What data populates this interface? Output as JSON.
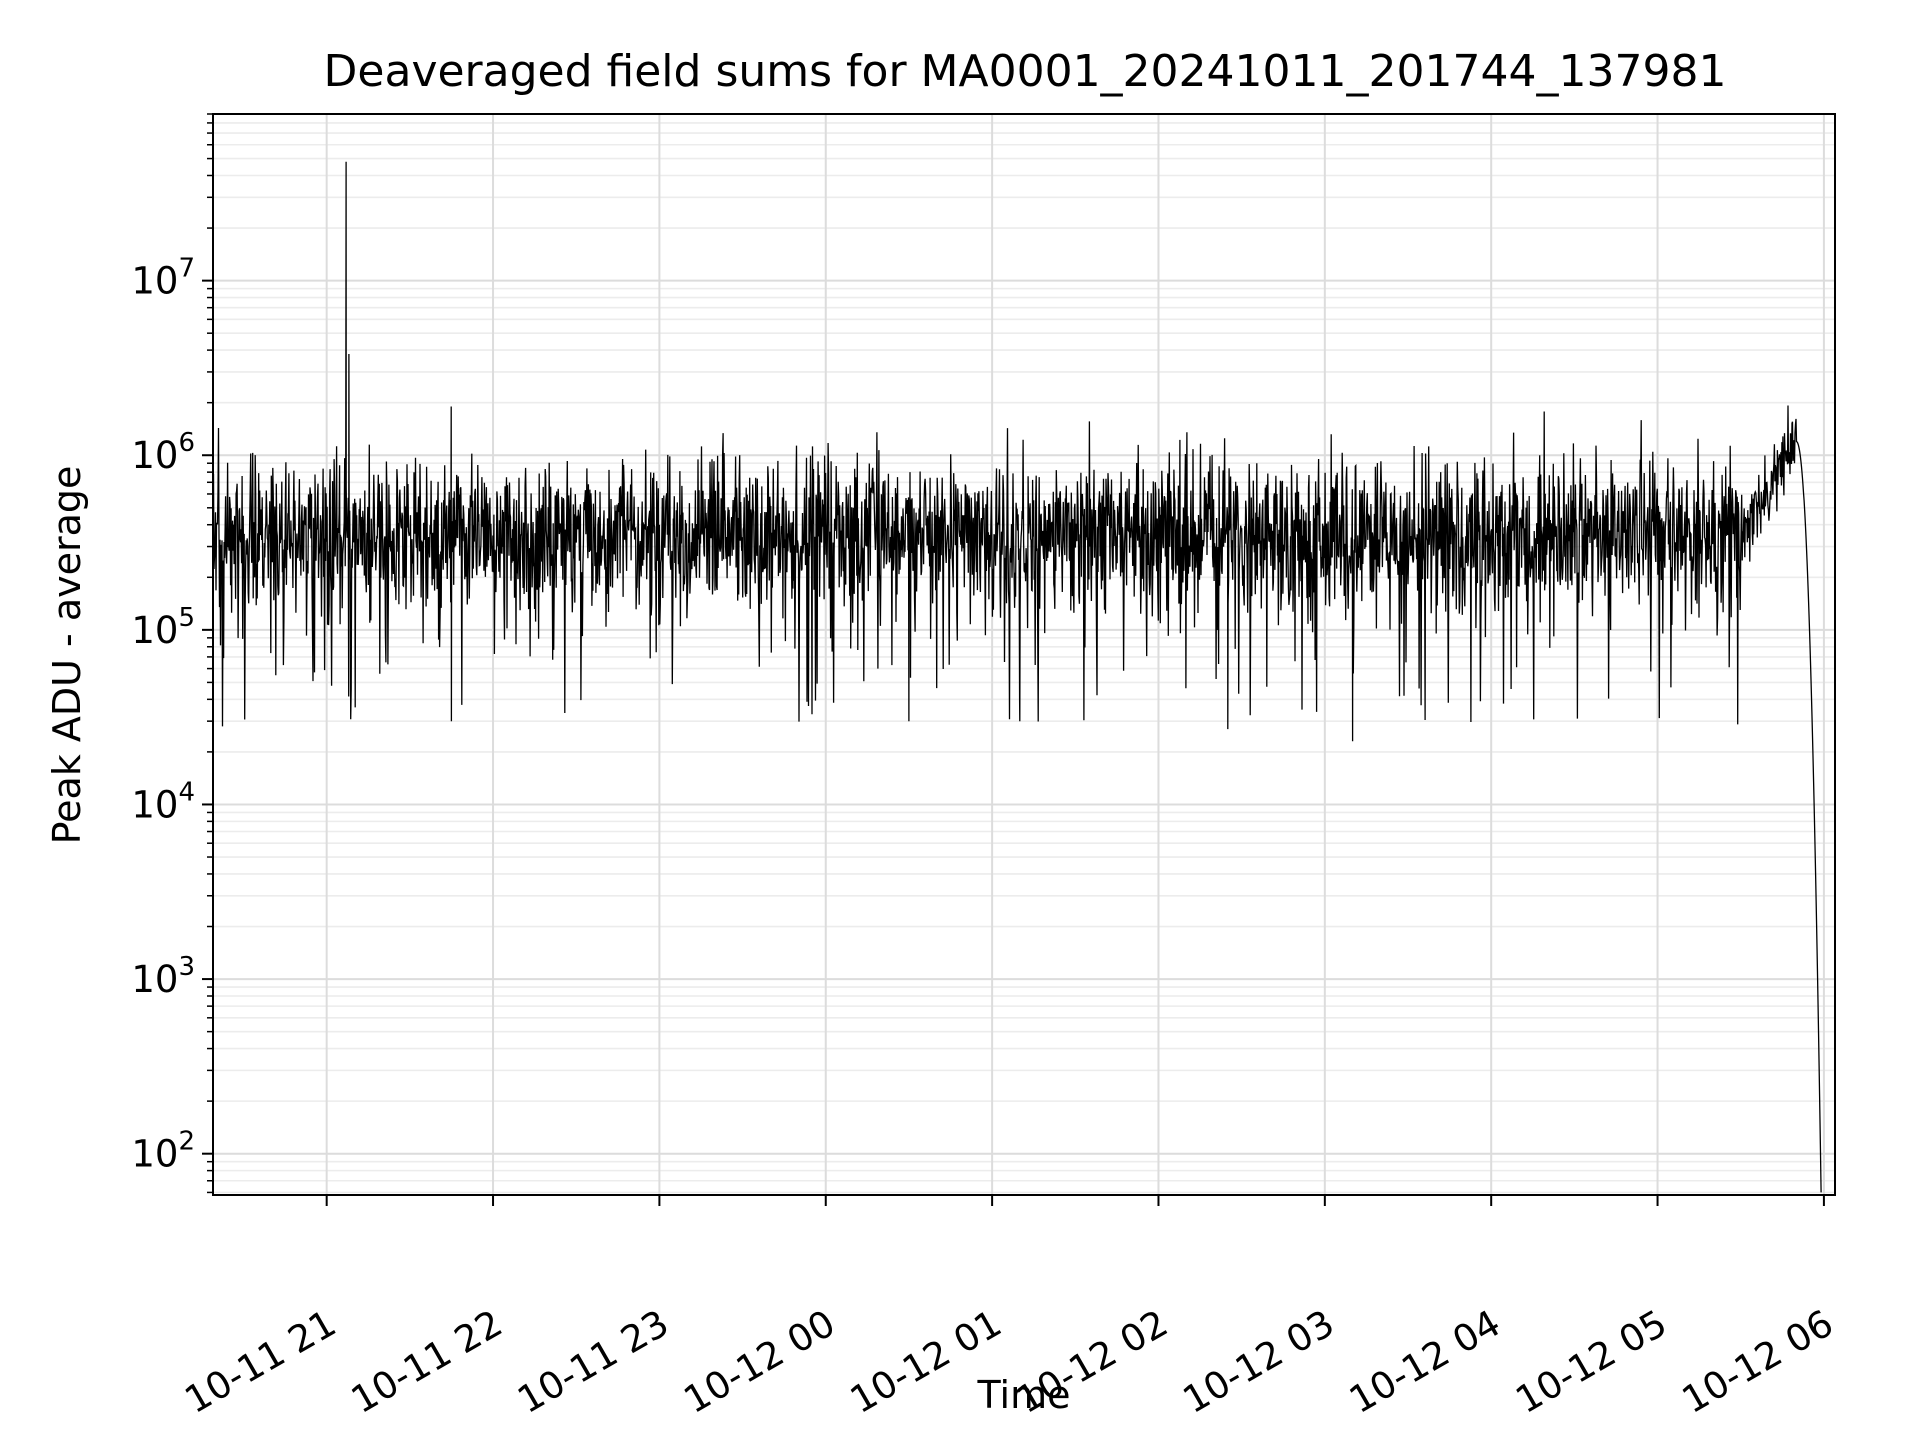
{
  "chart_data": {
    "type": "line",
    "title": "Deaveraged field sums for MA0001_20241011_201744_137981",
    "xlabel": "Time",
    "ylabel": "Peak ADU - average",
    "yscale": "log",
    "ylim": [
      58,
      90000000
    ],
    "xlim": [
      "2024-10-11 20:19",
      "2024-10-12 06:04"
    ],
    "grid": true,
    "x_ticks": [
      {
        "label": "10-11 21",
        "t": "2024-10-11 21:00"
      },
      {
        "label": "10-11 22",
        "t": "2024-10-11 22:00"
      },
      {
        "label": "10-11 23",
        "t": "2024-10-11 23:00"
      },
      {
        "label": "10-12 00",
        "t": "2024-10-12 00:00"
      },
      {
        "label": "10-12 01",
        "t": "2024-10-12 01:00"
      },
      {
        "label": "10-12 02",
        "t": "2024-10-12 02:00"
      },
      {
        "label": "10-12 03",
        "t": "2024-10-12 03:00"
      },
      {
        "label": "10-12 04",
        "t": "2024-10-12 04:00"
      },
      {
        "label": "10-12 05",
        "t": "2024-10-12 05:00"
      },
      {
        "label": "10-12 06",
        "t": "2024-10-12 06:00"
      }
    ],
    "y_ticks": [
      {
        "base": "10",
        "exp": "2",
        "value": 100
      },
      {
        "base": "10",
        "exp": "3",
        "value": 1000
      },
      {
        "base": "10",
        "exp": "4",
        "value": 10000
      },
      {
        "base": "10",
        "exp": "5",
        "value": 100000
      },
      {
        "base": "10",
        "exp": "6",
        "value": 1000000
      },
      {
        "base": "10",
        "exp": "7",
        "value": 10000000
      }
    ],
    "series": [
      {
        "color": "#000000",
        "baseline_level": 350000,
        "points": [
          {
            "t": "2024-10-11 20:19",
            "y": 200000
          },
          {
            "t": "2024-10-11 20:40",
            "y": 400000
          },
          {
            "t": "2024-10-11 21:05",
            "y": 350000
          },
          {
            "t": "2024-10-11 21:07",
            "y": 48000000
          },
          {
            "t": "2024-10-11 21:08",
            "y": 3800000
          },
          {
            "t": "2024-10-11 21:45",
            "y": 30000
          },
          {
            "t": "2024-10-11 23:00",
            "y": 400000
          },
          {
            "t": "2024-10-12 00:30",
            "y": 30000
          },
          {
            "t": "2024-10-12 01:10",
            "y": 30000
          },
          {
            "t": "2024-10-12 02:25",
            "y": 27000
          },
          {
            "t": "2024-10-12 03:10",
            "y": 23000
          },
          {
            "t": "2024-10-12 04:00",
            "y": 350000
          },
          {
            "t": "2024-10-12 05:00",
            "y": 380000
          },
          {
            "t": "2024-10-12 05:30",
            "y": 700000
          },
          {
            "t": "2024-10-12 05:45",
            "y": 1200000
          },
          {
            "t": "2024-10-12 05:50",
            "y": 800000
          },
          {
            "t": "2024-10-12 05:55",
            "y": 100000
          },
          {
            "t": "2024-10-12 05:57",
            "y": 17000
          },
          {
            "t": "2024-10-12 05:58",
            "y": 500
          },
          {
            "t": "2024-10-12 05:59",
            "y": 60
          }
        ]
      }
    ]
  }
}
